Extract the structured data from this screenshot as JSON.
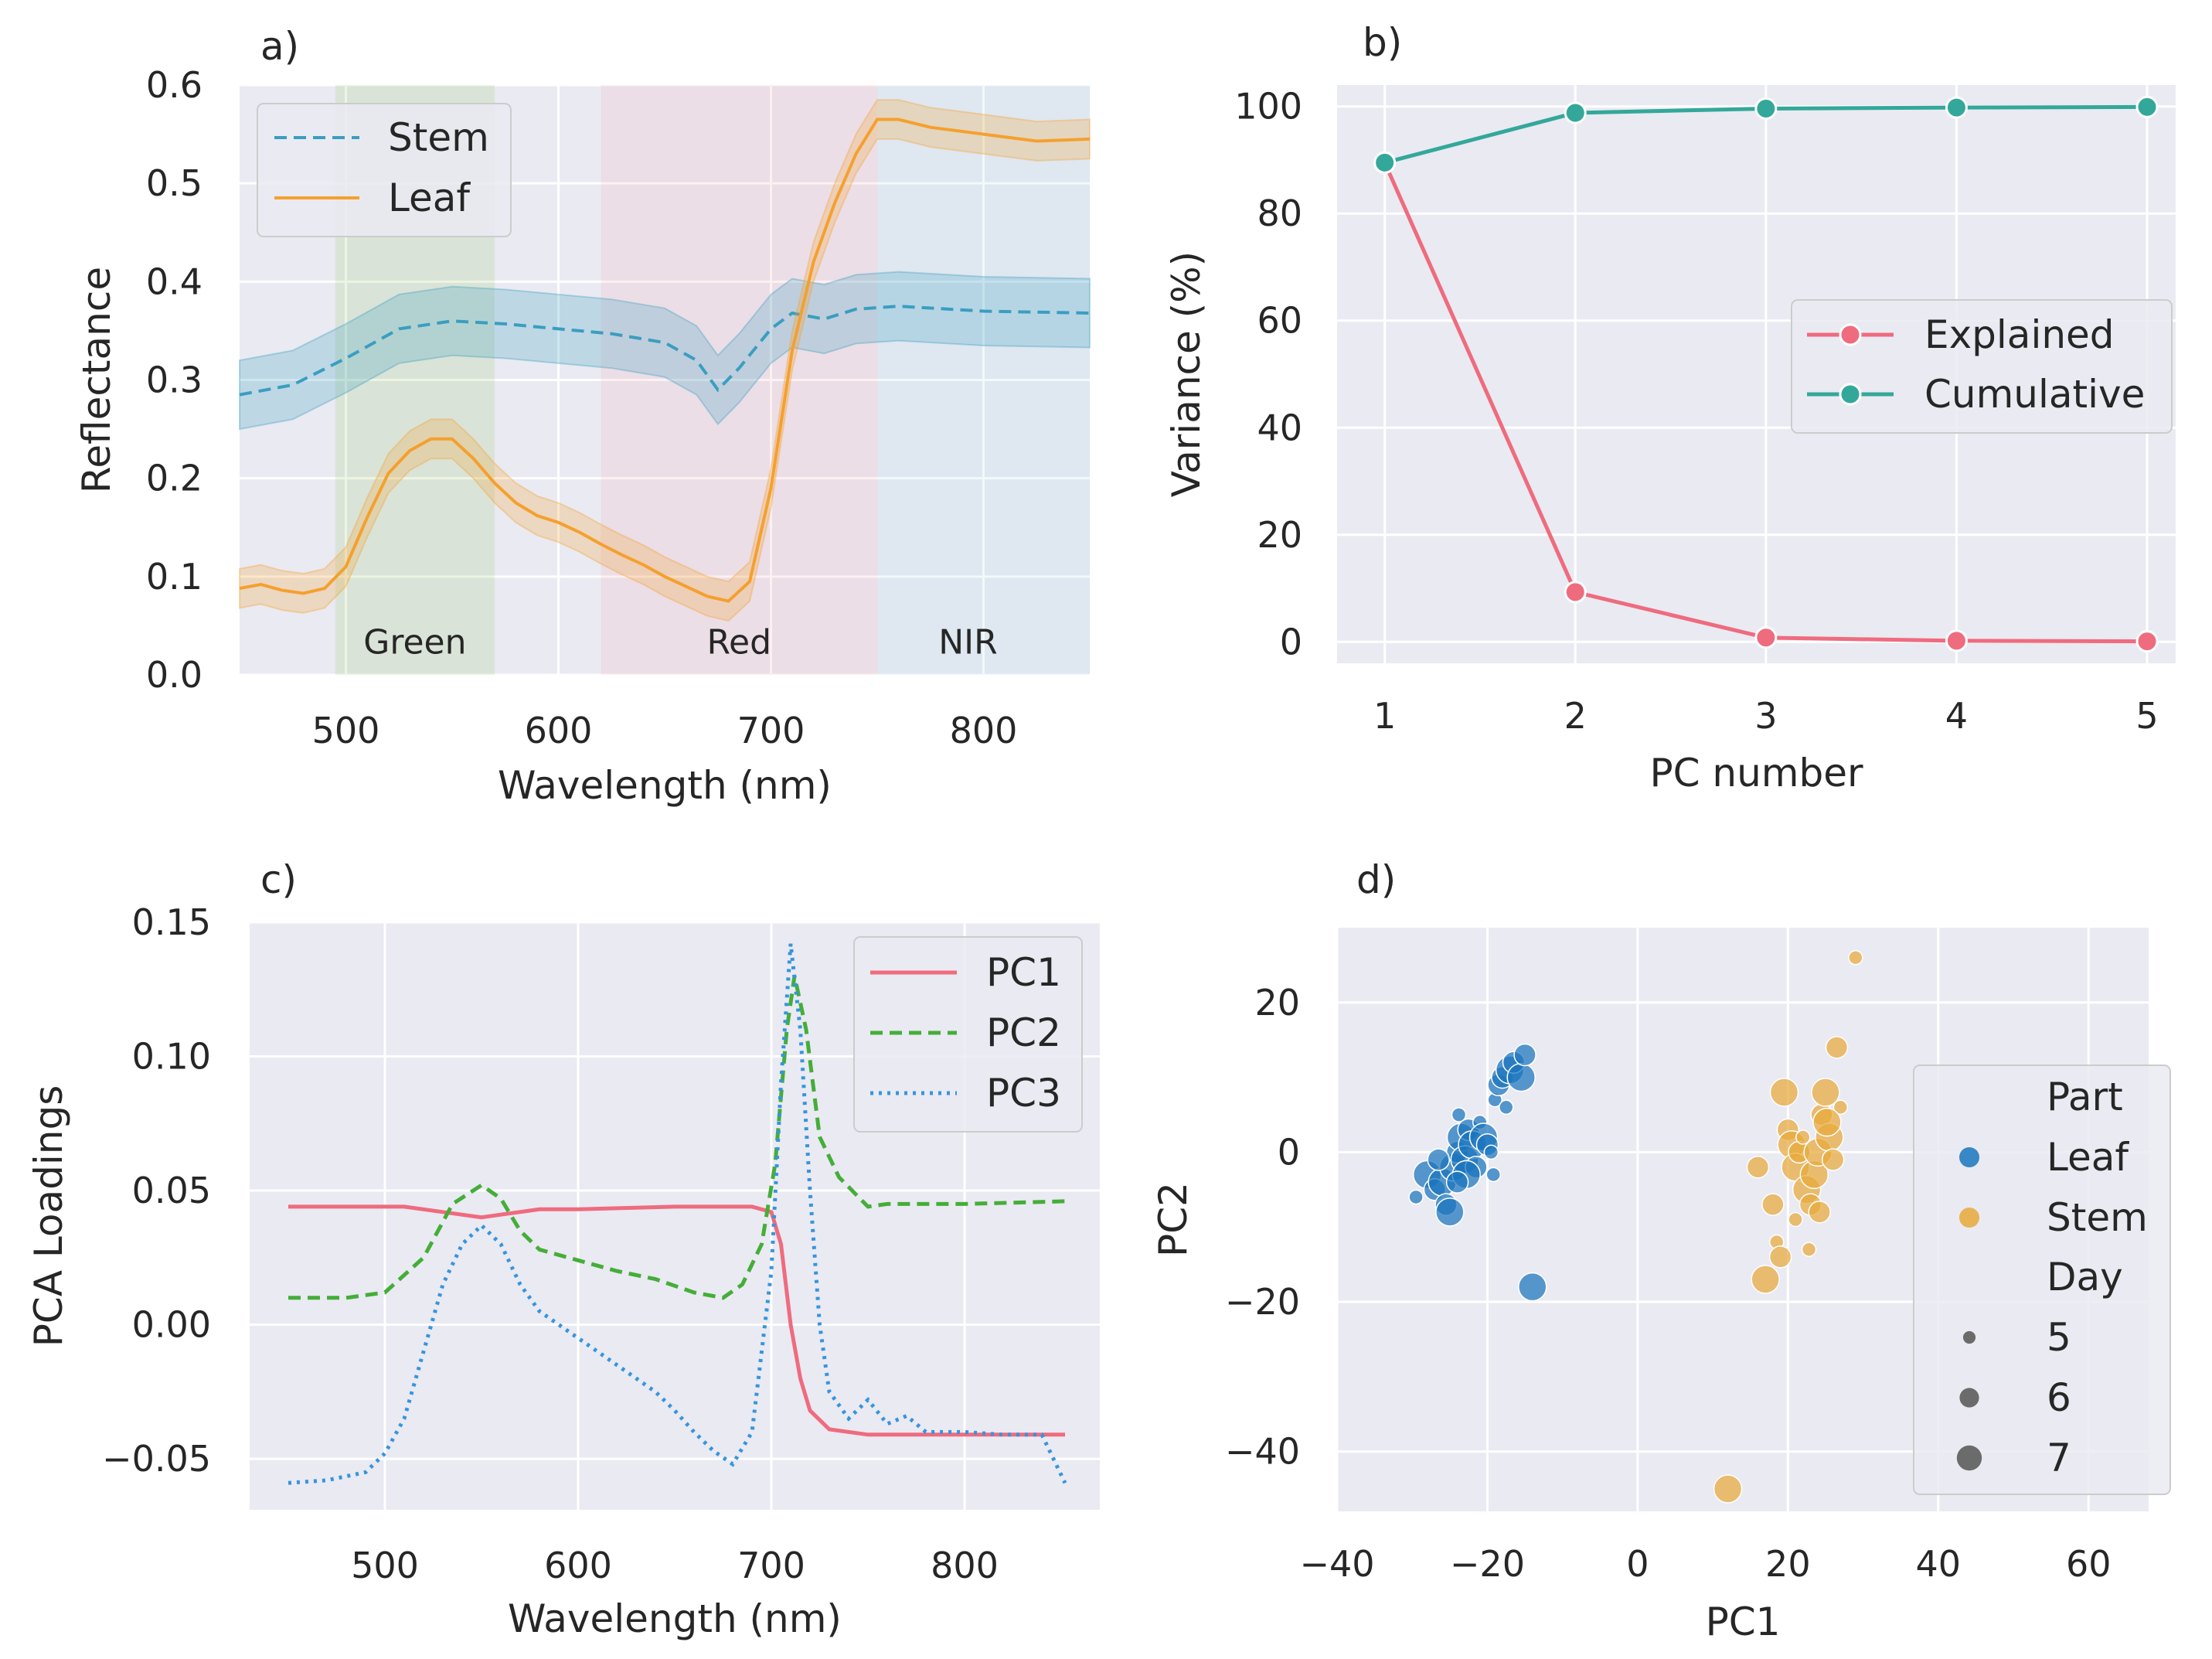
{
  "chart_data": [
    {
      "panel": "a)",
      "type": "line",
      "xlabel": "Wavelength (nm)",
      "ylabel": "Reflectance",
      "xlim": [
        450,
        850
      ],
      "ylim": [
        0,
        0.6
      ],
      "xticks": [
        500,
        600,
        700,
        800
      ],
      "xtick_labels": [
        "500",
        "600",
        "700",
        "800"
      ],
      "yticks": [
        0,
        0.1,
        0.2,
        0.3,
        0.4,
        0.5,
        0.6
      ],
      "ytick_labels": [
        "0.0",
        "0.1",
        "0.2",
        "0.3",
        "0.4",
        "0.5",
        "0.6"
      ],
      "grid": true,
      "legend_position": "top-left",
      "bands": [
        {
          "label": "Green",
          "from": 495,
          "to": 570,
          "color": "#8bc34a"
        },
        {
          "label": "Red",
          "from": 620,
          "to": 750,
          "color": "#f4a0a8"
        },
        {
          "label": "NIR",
          "from": 750,
          "to": 850,
          "color": "#a9dbe8"
        }
      ],
      "series": [
        {
          "name": "Stem",
          "style": "dashed",
          "color": "#3a9ec0",
          "x": [
            450,
            475,
            500,
            525,
            550,
            575,
            600,
            625,
            650,
            665,
            675,
            685,
            700,
            710,
            725,
            740,
            760,
            800,
            850
          ],
          "y": [
            0.285,
            0.295,
            0.322,
            0.352,
            0.36,
            0.357,
            0.352,
            0.347,
            0.338,
            0.32,
            0.29,
            0.312,
            0.352,
            0.368,
            0.362,
            0.372,
            0.375,
            0.37,
            0.368
          ],
          "band": 0.035
        },
        {
          "name": "Leaf",
          "style": "solid",
          "color": "#f5a02d",
          "x": [
            450,
            460,
            470,
            480,
            490,
            500,
            510,
            520,
            530,
            540,
            550,
            560,
            570,
            580,
            590,
            600,
            610,
            620,
            630,
            640,
            650,
            660,
            670,
            680,
            690,
            700,
            710,
            720,
            730,
            740,
            750,
            760,
            775,
            800,
            825,
            850
          ],
          "y": [
            0.088,
            0.092,
            0.086,
            0.083,
            0.088,
            0.11,
            0.16,
            0.205,
            0.228,
            0.24,
            0.24,
            0.22,
            0.195,
            0.175,
            0.162,
            0.155,
            0.145,
            0.133,
            0.122,
            0.112,
            0.1,
            0.09,
            0.08,
            0.075,
            0.095,
            0.19,
            0.33,
            0.42,
            0.48,
            0.53,
            0.565,
            0.565,
            0.557,
            0.55,
            0.543,
            0.545
          ],
          "band": 0.02
        }
      ]
    },
    {
      "panel": "b)",
      "type": "line",
      "xlabel": "PC number",
      "ylabel": "Variance (%)",
      "xlim": [
        0.75,
        5.15
      ],
      "ylim": [
        -4,
        104
      ],
      "xticks": [
        1,
        2,
        3,
        4,
        5
      ],
      "xtick_labels": [
        "1",
        "2",
        "3",
        "4",
        "5"
      ],
      "yticks": [
        0,
        20,
        40,
        60,
        80,
        100
      ],
      "ytick_labels": [
        "0",
        "20",
        "40",
        "60",
        "80",
        "100"
      ],
      "grid": true,
      "legend_position": "center-right",
      "categories": [
        1,
        2,
        3,
        4,
        5
      ],
      "series": [
        {
          "name": "Explained",
          "color": "#ef6b7e",
          "values": [
            89.5,
            9.3,
            0.8,
            0.2,
            0.1
          ]
        },
        {
          "name": "Cumulative",
          "color": "#33a89a",
          "values": [
            89.5,
            98.8,
            99.6,
            99.8,
            99.9
          ]
        }
      ]
    },
    {
      "panel": "c)",
      "type": "line",
      "xlabel": "Wavelength (nm)",
      "ylabel": "PCA Loadings",
      "xlim": [
        430,
        870
      ],
      "ylim": [
        -0.069,
        0.15
      ],
      "xticks": [
        500,
        600,
        700,
        800
      ],
      "xtick_labels": [
        "500",
        "600",
        "700",
        "800"
      ],
      "yticks": [
        -0.05,
        0,
        0.05,
        0.1,
        0.15
      ],
      "ytick_labels": [
        "−0.05",
        "0.00",
        "0.05",
        "0.10",
        "0.15"
      ],
      "grid": true,
      "legend_position": "top-right",
      "series": [
        {
          "name": "PC1",
          "style": "solid",
          "color": "#ef6b7e",
          "x": [
            450,
            510,
            530,
            550,
            580,
            600,
            650,
            690,
            700,
            705,
            710,
            715,
            720,
            730,
            750,
            800,
            852
          ],
          "y": [
            0.044,
            0.044,
            0.042,
            0.04,
            0.043,
            0.043,
            0.044,
            0.044,
            0.042,
            0.03,
            0.0,
            -0.02,
            -0.032,
            -0.039,
            -0.041,
            -0.041,
            -0.041
          ]
        },
        {
          "name": "PC2",
          "style": "dashed",
          "color": "#44ae38",
          "x": [
            450,
            480,
            500,
            520,
            535,
            550,
            560,
            570,
            580,
            600,
            620,
            640,
            660,
            675,
            685,
            695,
            702,
            708,
            712,
            718,
            725,
            735,
            750,
            760,
            800,
            852
          ],
          "y": [
            0.01,
            0.01,
            0.012,
            0.025,
            0.045,
            0.052,
            0.047,
            0.035,
            0.028,
            0.024,
            0.02,
            0.017,
            0.012,
            0.01,
            0.015,
            0.03,
            0.06,
            0.11,
            0.13,
            0.11,
            0.07,
            0.055,
            0.044,
            0.045,
            0.045,
            0.046
          ],
          "band": 0
        },
        {
          "name": "PC3",
          "style": "dotted",
          "color": "#3595de",
          "x": [
            450,
            470,
            490,
            500,
            510,
            520,
            530,
            540,
            550,
            560,
            570,
            580,
            600,
            620,
            640,
            650,
            660,
            670,
            680,
            690,
            700,
            705,
            710,
            715,
            720,
            725,
            730,
            740,
            750,
            760,
            770,
            780,
            800,
            820,
            840,
            852
          ],
          "y": [
            -0.059,
            -0.058,
            -0.055,
            -0.048,
            -0.035,
            -0.01,
            0.015,
            0.03,
            0.037,
            0.03,
            0.015,
            0.005,
            -0.005,
            -0.015,
            -0.025,
            -0.032,
            -0.04,
            -0.047,
            -0.052,
            -0.04,
            0.02,
            0.09,
            0.142,
            0.11,
            0.05,
            0.0,
            -0.025,
            -0.035,
            -0.028,
            -0.037,
            -0.034,
            -0.04,
            -0.04,
            -0.041,
            -0.041,
            -0.059
          ]
        }
      ]
    },
    {
      "panel": "d)",
      "type": "scatter",
      "xlabel": "PC1",
      "ylabel": "PC2",
      "xlim": [
        -40,
        68
      ],
      "ylim": [
        -48,
        30
      ],
      "xticks": [
        -40,
        -20,
        0,
        20,
        40,
        60
      ],
      "xtick_labels": [
        "−40",
        "−20",
        "0",
        "20",
        "40",
        "60"
      ],
      "yticks": [
        -40,
        -20,
        0,
        20
      ],
      "ytick_labels": [
        "−40",
        "−20",
        "0",
        "20"
      ],
      "grid": true,
      "legend_position": "right",
      "legend_title_part": "Part",
      "legend_title_day": "Day",
      "days": [
        5,
        6,
        7
      ],
      "day_labels": [
        "5",
        "6",
        "7"
      ],
      "series": [
        {
          "name": "Leaf",
          "color": "#1a75bc",
          "points": [
            [
              -29.5,
              -6,
              5
            ],
            [
              -28,
              -3,
              7
            ],
            [
              -27,
              -5,
              6
            ],
            [
              -26,
              -4,
              7
            ],
            [
              -25.5,
              -7,
              6
            ],
            [
              -25,
              -8,
              7
            ],
            [
              -24.5,
              -2,
              7
            ],
            [
              -24,
              0,
              6
            ],
            [
              -23.5,
              2,
              7
            ],
            [
              -23,
              -1,
              7
            ],
            [
              -22.5,
              3,
              6
            ],
            [
              -22,
              1,
              7
            ],
            [
              -21.5,
              -2,
              6
            ],
            [
              -21,
              4,
              5
            ],
            [
              -20.5,
              2,
              7
            ],
            [
              -20,
              1,
              6
            ],
            [
              -19.5,
              0,
              5
            ],
            [
              -19.2,
              -3,
              5
            ],
            [
              -19,
              7,
              5
            ],
            [
              -18.5,
              9,
              6
            ],
            [
              -18,
              10,
              6
            ],
            [
              -17.5,
              6,
              5
            ],
            [
              -17,
              11,
              7
            ],
            [
              -16.5,
              12,
              6
            ],
            [
              -15.5,
              10,
              7
            ],
            [
              -15,
              13,
              6
            ],
            [
              -23.8,
              5,
              5
            ],
            [
              -26.5,
              -1,
              6
            ],
            [
              -22.8,
              -3,
              7
            ],
            [
              -24,
              -4,
              6
            ],
            [
              -14,
              -18,
              7
            ]
          ]
        },
        {
          "name": "Stem",
          "color": "#e8a93a",
          "points": [
            [
              17,
              -17,
              7
            ],
            [
              18,
              -7,
              6
            ],
            [
              18.5,
              -12,
              5
            ],
            [
              19,
              -14,
              6
            ],
            [
              19.5,
              8,
              7
            ],
            [
              20,
              3,
              6
            ],
            [
              20.5,
              1,
              7
            ],
            [
              21,
              -2,
              7
            ],
            [
              21.5,
              0,
              6
            ],
            [
              22,
              2,
              5
            ],
            [
              22.5,
              -5,
              7
            ],
            [
              23,
              -7,
              6
            ],
            [
              23.5,
              -3,
              7
            ],
            [
              24,
              0,
              7
            ],
            [
              24.5,
              5,
              6
            ],
            [
              25,
              8,
              7
            ],
            [
              25.5,
              2,
              7
            ],
            [
              26,
              -1,
              6
            ],
            [
              26.5,
              14,
              6
            ],
            [
              27,
              6,
              5
            ],
            [
              21,
              -9,
              5
            ],
            [
              22.8,
              -13,
              5
            ],
            [
              16,
              -2,
              6
            ],
            [
              24.2,
              -8,
              6
            ],
            [
              25.2,
              4,
              7
            ],
            [
              29,
              26,
              5
            ],
            [
              12,
              -45,
              7
            ]
          ]
        }
      ]
    }
  ]
}
